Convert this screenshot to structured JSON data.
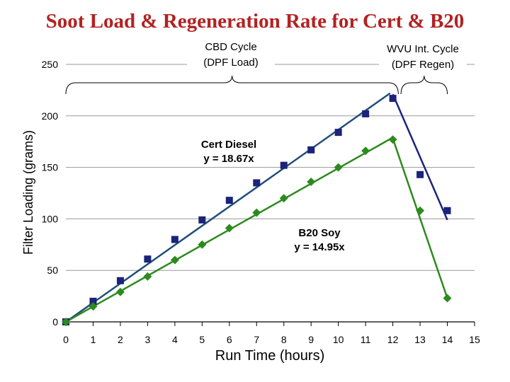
{
  "title": "Soot Load & Regeneration Rate for Cert & B20",
  "chart_data": {
    "type": "scatter",
    "title": "Soot Load & Regeneration Rate for Cert & B20",
    "xlabel": "Run Time (hours)",
    "ylabel": "Filter Loading (grams)",
    "xlim": [
      0,
      15
    ],
    "ylim": [
      0,
      250
    ],
    "x_ticks": [
      "0",
      "1",
      "2",
      "3",
      "4",
      "5",
      "6",
      "7",
      "8",
      "9",
      "10",
      "11",
      "12",
      "13",
      "14",
      "15"
    ],
    "y_ticks": [
      "0",
      "50",
      "100",
      "150",
      "200",
      "250"
    ],
    "grid": "horizontal",
    "colors": {
      "cert": "#1b237a",
      "b20": "#2d8a1e",
      "cert_fit": "#1f4e79",
      "b20_fit": "#2d8a1e",
      "title": "#b22222"
    },
    "series": [
      {
        "name": "Cert Diesel",
        "marker": "square",
        "color": "#1b237a",
        "x": [
          0,
          1,
          2,
          3,
          4,
          5,
          6,
          7,
          8,
          9,
          10,
          11,
          12,
          13,
          14
        ],
        "y": [
          0,
          20,
          40,
          61,
          80,
          99,
          118,
          135,
          152,
          167,
          184,
          202,
          217,
          143,
          108
        ]
      },
      {
        "name": "B20 Soy",
        "marker": "diamond",
        "color": "#2d8a1e",
        "x": [
          0,
          1,
          2,
          3,
          4,
          5,
          6,
          7,
          8,
          9,
          10,
          11,
          12,
          13,
          14
        ],
        "y": [
          0,
          15,
          29,
          44,
          60,
          75,
          91,
          106,
          120,
          136,
          150,
          166,
          177,
          108,
          23
        ]
      }
    ],
    "fits": [
      {
        "series": "Cert Diesel",
        "x": [
          0,
          11.9
        ],
        "y": [
          0,
          222
        ],
        "label_line1": "Cert Diesel",
        "label_line2": "y = 18.67x"
      },
      {
        "series": "B20 Soy",
        "x": [
          0,
          12
        ],
        "y": [
          0,
          179
        ],
        "label_line1": "B20 Soy",
        "label_line2": "y = 14.95x"
      }
    ],
    "regen_lines": [
      {
        "series": "Cert Diesel",
        "x": [
          12,
          14
        ],
        "y": [
          221,
          99
        ]
      },
      {
        "series": "B20 Soy",
        "x": [
          12,
          14
        ],
        "y": [
          178,
          23
        ]
      }
    ],
    "annotations": {
      "cbd": {
        "line1": "CBD Cycle",
        "line2": "(DPF Load)"
      },
      "wvu": {
        "line1": "WVU Int. Cycle",
        "line2": "(DPF Regen)"
      }
    }
  }
}
